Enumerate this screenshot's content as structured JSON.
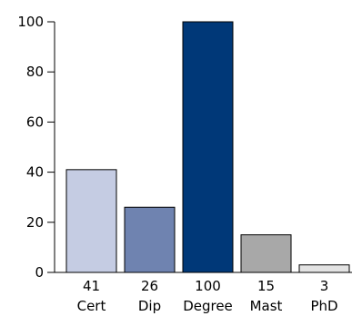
{
  "chart_data": {
    "type": "bar",
    "title": "",
    "xlabel": "",
    "ylabel": "",
    "categories": [
      "Cert",
      "Dip",
      "Degree",
      "Mast",
      "PhD"
    ],
    "values": [
      41,
      26,
      100,
      15,
      3
    ],
    "data_labels": [
      "41",
      "26",
      "100",
      "15",
      "3"
    ],
    "bar_colors": [
      "#c5cce3",
      "#6f83b0",
      "#003878",
      "#a8a8a8",
      "#e3e3e3"
    ],
    "ylim": [
      0,
      100
    ],
    "yticks": [
      0,
      20,
      40,
      60,
      80,
      100
    ],
    "ytick_labels": [
      "0",
      "20",
      "40",
      "60",
      "80",
      "100"
    ],
    "grid": false,
    "legend": "none"
  }
}
